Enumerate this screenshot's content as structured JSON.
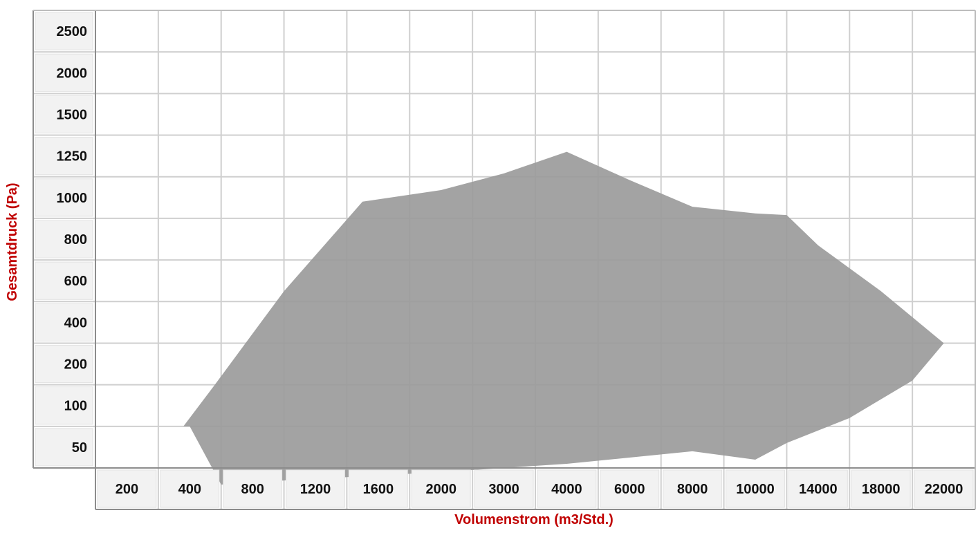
{
  "chart_data": {
    "type": "area",
    "title": "",
    "xlabel": "Volumenstrom (m3/Std.)",
    "ylabel": "Gesamtdruck (Pa)",
    "x_ticks": [
      "200",
      "400",
      "800",
      "1200",
      "1600",
      "2000",
      "3000",
      "4000",
      "6000",
      "8000",
      "10000",
      "14000",
      "18000",
      "22000"
    ],
    "y_ticks": [
      "2500",
      "2000",
      "1500",
      "1250",
      "1000",
      "800",
      "600",
      "400",
      "200",
      "100",
      "50"
    ],
    "grid": true,
    "fill_color": "#9b9b9b",
    "axis_label_color": "#c00000",
    "series": [
      {
        "points": [
          {
            "x": 380,
            "y": 100
          },
          {
            "x": 560,
            "y": 200
          },
          {
            "x": 1000,
            "y": 650
          },
          {
            "x": 1500,
            "y": 1100
          },
          {
            "x": 2000,
            "y": 1170
          },
          {
            "x": 3000,
            "y": 1270
          },
          {
            "x": 4000,
            "y": 1400
          },
          {
            "x": 6000,
            "y": 1230
          },
          {
            "x": 8000,
            "y": 1070
          },
          {
            "x": 10000,
            "y": 1030
          },
          {
            "x": 12000,
            "y": 1020
          },
          {
            "x": 14000,
            "y": 870
          },
          {
            "x": 18000,
            "y": 650
          },
          {
            "x": 22000,
            "y": 400
          },
          {
            "x": 20000,
            "y": 220
          },
          {
            "x": 16000,
            "y": 120
          },
          {
            "x": 12000,
            "y": 80
          },
          {
            "x": 10000,
            "y": 60
          },
          {
            "x": 8000,
            "y": 70
          },
          {
            "x": 4000,
            "y": 55
          },
          {
            "x": 3000,
            "y": 50
          },
          {
            "x": 2000,
            "y": 45
          },
          {
            "x": 1000,
            "y": 35
          },
          {
            "x": 600,
            "y": 30
          },
          {
            "x": 400,
            "y": 100
          }
        ]
      }
    ]
  }
}
